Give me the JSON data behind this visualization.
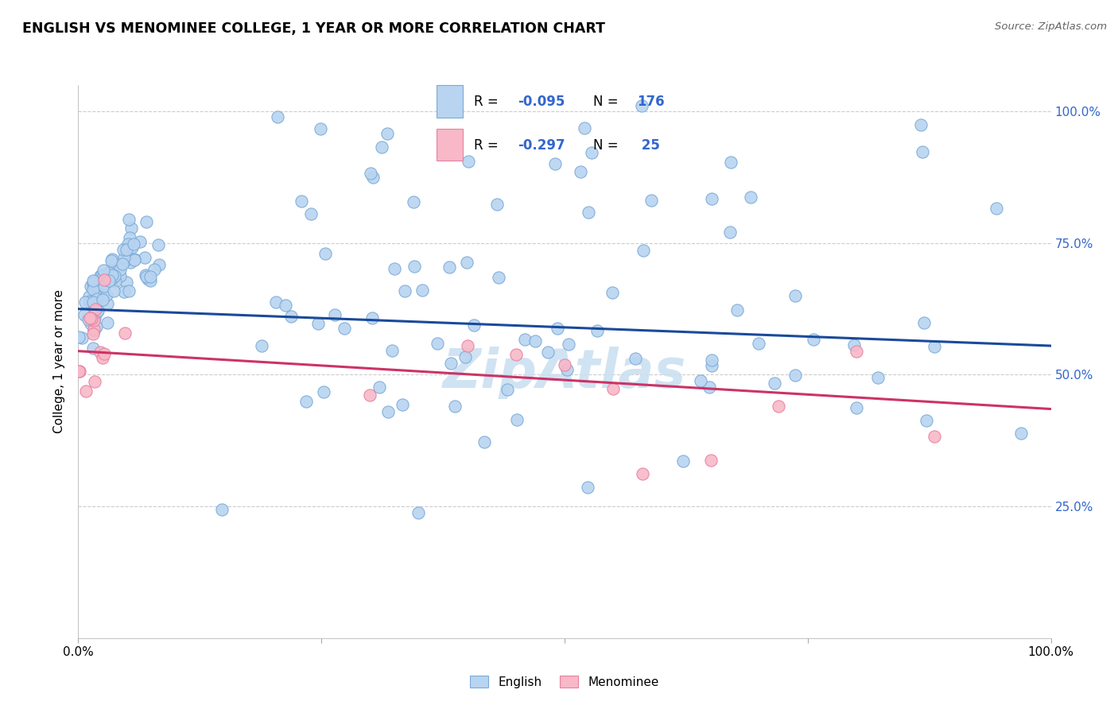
{
  "title": "ENGLISH VS MENOMINEE COLLEGE, 1 YEAR OR MORE CORRELATION CHART",
  "source_text": "Source: ZipAtlas.com",
  "ylabel": "College, 1 year or more",
  "xlim": [
    0.0,
    1.0
  ],
  "ylim": [
    0.0,
    1.05
  ],
  "legend_r1": "-0.095",
  "legend_n1": "176",
  "legend_r2": "-0.297",
  "legend_n2": " 25",
  "legend_label1": "English",
  "legend_label2": "Menominee",
  "blue_fill": "#b8d4f0",
  "blue_edge": "#7baad8",
  "pink_fill": "#f8b8c8",
  "pink_edge": "#e880a0",
  "blue_line_color": "#1a4a9a",
  "pink_line_color": "#cc3366",
  "watermark": "ZipAtlas",
  "watermark_color": "#c8dff0",
  "text_blue": "#3366cc",
  "eng_line_x0": 0.0,
  "eng_line_y0": 0.625,
  "eng_line_x1": 1.0,
  "eng_line_y1": 0.555,
  "men_line_x0": 0.0,
  "men_line_y0": 0.545,
  "men_line_x1": 1.0,
  "men_line_y1": 0.435
}
